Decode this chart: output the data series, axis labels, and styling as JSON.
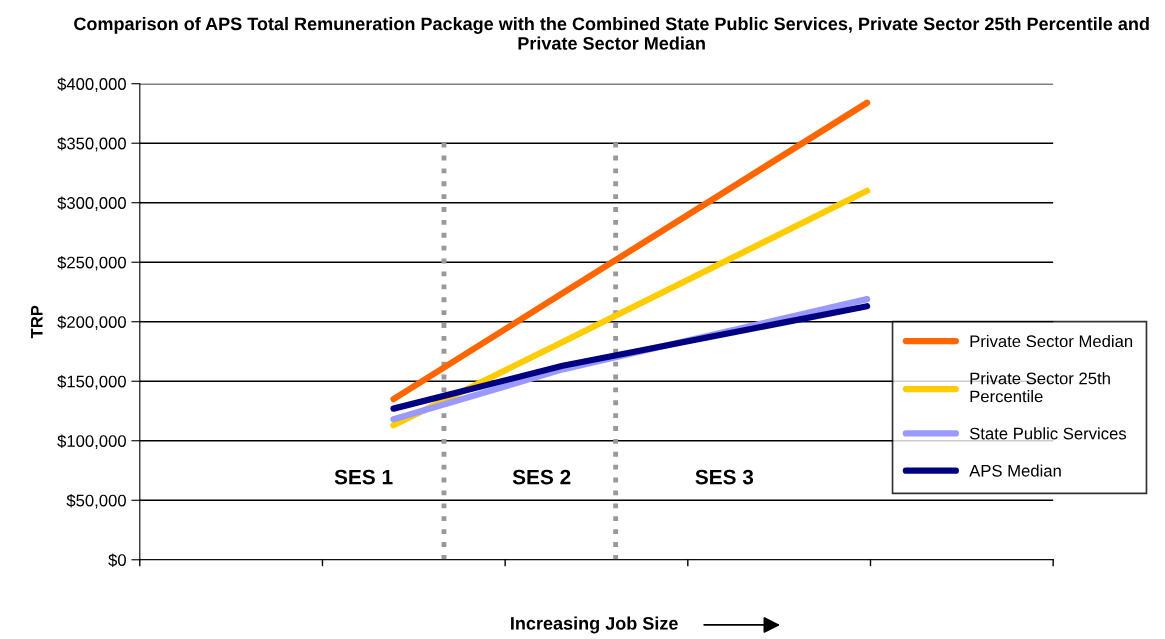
{
  "chart_data": {
    "type": "line",
    "title": "Comparison of APS Total Remuneration Package with the Combined State Public Services, Private Sector 25th Percentile and Private Sector Median",
    "xlabel": "Increasing Job Size",
    "ylabel": "TRP",
    "categories": [
      null,
      null,
      null,
      null,
      null,
      null,
      null,
      null,
      null,
      null,
      null,
      null,
      null,
      null,
      null,
      null,
      null,
      null,
      null,
      null,
      null,
      null,
      null,
      null,
      null,
      null,
      null
    ],
    "series": [
      {
        "name": "Private Sector Median",
        "color": "#ff6600",
        "values": [
          null,
          null,
          null,
          null,
          null,
          null,
          null,
          135000,
          null,
          null,
          null,
          null,
          224000,
          null,
          null,
          null,
          null,
          null,
          null,
          null,
          null,
          384000,
          null,
          null,
          null,
          null,
          null
        ]
      },
      {
        "name": "Private Sector 25th\nPercentile",
        "color": "#ffcc00",
        "values": [
          null,
          null,
          null,
          null,
          null,
          null,
          null,
          113000,
          null,
          null,
          null,
          null,
          183000,
          null,
          null,
          null,
          null,
          null,
          null,
          null,
          null,
          310000,
          null,
          null,
          null,
          null,
          null
        ]
      },
      {
        "name": "State Public Services",
        "color": "#9999ff",
        "values": [
          null,
          null,
          null,
          null,
          null,
          null,
          null,
          118000,
          null,
          null,
          null,
          null,
          160000,
          null,
          null,
          null,
          null,
          null,
          null,
          null,
          null,
          219000,
          null,
          null,
          null,
          null,
          null
        ]
      },
      {
        "name": "APS Median",
        "color": "#000080",
        "values": [
          null,
          null,
          null,
          null,
          null,
          null,
          null,
          127000,
          null,
          null,
          null,
          null,
          163000,
          null,
          null,
          null,
          null,
          null,
          null,
          null,
          null,
          213000,
          null,
          null,
          null,
          null,
          null
        ]
      }
    ],
    "ylim": [
      0,
      400000
    ],
    "yticks": [
      {
        "value": 0,
        "label": "$0"
      },
      {
        "value": 50000,
        "label": "$50,000"
      },
      {
        "value": 100000,
        "label": "$100,000"
      },
      {
        "value": 150000,
        "label": "$150,000"
      },
      {
        "value": 200000,
        "label": "$200,000"
      },
      {
        "value": 250000,
        "label": "$250,000"
      },
      {
        "value": 300000,
        "label": "$300,000"
      },
      {
        "value": 350000,
        "label": "$350,000"
      },
      {
        "value": 400000,
        "label": "$400,000"
      }
    ],
    "annotations": [
      "SES 1",
      "SES 2",
      "SES 3"
    ],
    "grid": "y",
    "legend": "right",
    "marker": "none",
    "line_style": "solid"
  }
}
